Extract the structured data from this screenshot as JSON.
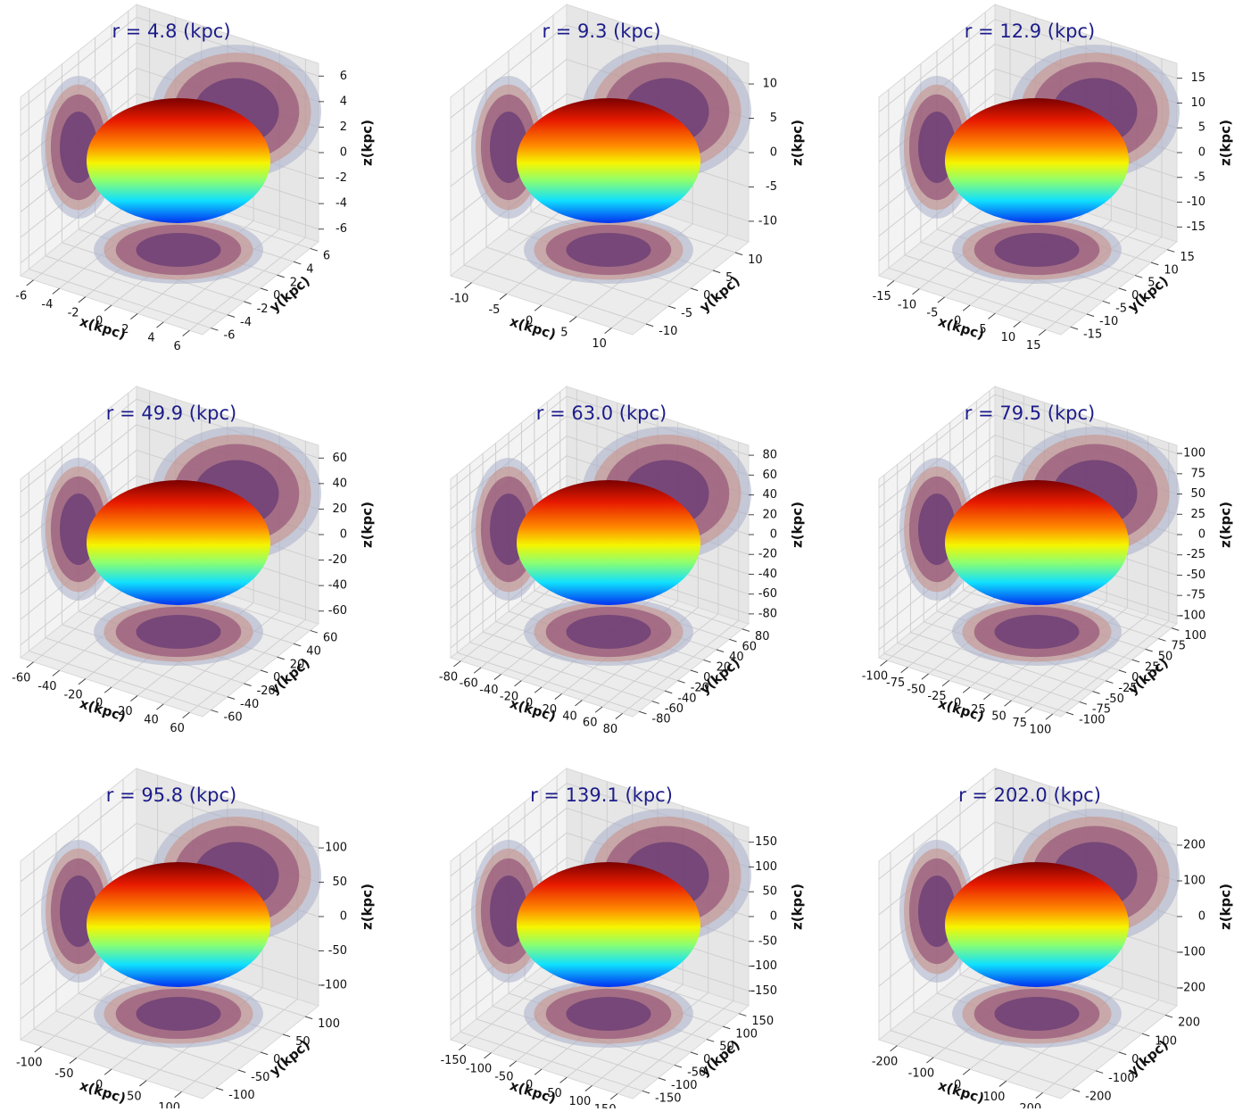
{
  "chart_data": [
    {
      "type": "ellipsoid3d",
      "title": "r = 4.8 (kpc)",
      "xlabel": "x(kpc)",
      "ylabel": "y(kpc)",
      "zlabel": "z(kpc)",
      "xlim": [
        -7,
        7
      ],
      "ylim": [
        -7,
        7
      ],
      "zlim": [
        -7,
        7
      ],
      "xticks": [
        -6,
        -4,
        -2,
        0,
        2,
        4,
        6
      ],
      "yticks": [
        -6,
        -4,
        -2,
        0,
        2,
        4,
        6
      ],
      "zticks": [
        -6,
        -4,
        -2,
        0,
        2,
        4,
        6
      ]
    },
    {
      "type": "ellipsoid3d",
      "title": "r = 9.3 (kpc)",
      "xlabel": "x(kpc)",
      "ylabel": "y(kpc)",
      "zlabel": "z(kpc)",
      "xlim": [
        -13,
        13
      ],
      "ylim": [
        -13,
        13
      ],
      "zlim": [
        -13,
        13
      ],
      "xticks": [
        -10,
        -5,
        0,
        5,
        10
      ],
      "yticks": [
        -10,
        -5,
        0,
        5,
        10
      ],
      "zticks": [
        -10,
        -5,
        0,
        5,
        10
      ]
    },
    {
      "type": "ellipsoid3d",
      "title": "r = 12.9 (kpc)",
      "xlabel": "x(kpc)",
      "ylabel": "y(kpc)",
      "zlabel": "z(kpc)",
      "xlim": [
        -18,
        18
      ],
      "ylim": [
        -18,
        18
      ],
      "zlim": [
        -18,
        18
      ],
      "xticks": [
        -15,
        -10,
        -5,
        0,
        5,
        10,
        15
      ],
      "yticks": [
        -15,
        -10,
        -5,
        0,
        5,
        10,
        15
      ],
      "zticks": [
        -15,
        -10,
        -5,
        0,
        5,
        10,
        15
      ]
    },
    {
      "type": "ellipsoid3d",
      "title": "r = 49.9 (kpc)",
      "xlabel": "x(kpc)",
      "ylabel": "y(kpc)",
      "zlabel": "z(kpc)",
      "xlim": [
        -70,
        70
      ],
      "ylim": [
        -70,
        70
      ],
      "zlim": [
        -70,
        70
      ],
      "xticks": [
        -60,
        -40,
        -20,
        0,
        20,
        40,
        60
      ],
      "yticks": [
        -60,
        -40,
        -20,
        0,
        20,
        40,
        60
      ],
      "zticks": [
        -60,
        -40,
        -20,
        0,
        20,
        40,
        60
      ]
    },
    {
      "type": "ellipsoid3d",
      "title": "r = 63.0 (kpc)",
      "xlabel": "x(kpc)",
      "ylabel": "y(kpc)",
      "zlabel": "z(kpc)",
      "xlim": [
        -90,
        90
      ],
      "ylim": [
        -90,
        90
      ],
      "zlim": [
        -90,
        90
      ],
      "xticks": [
        -80,
        -60,
        -40,
        -20,
        0,
        20,
        40,
        60,
        80
      ],
      "yticks": [
        -80,
        -60,
        -40,
        -20,
        0,
        20,
        40,
        60,
        80
      ],
      "zticks": [
        -80,
        -60,
        -40,
        -20,
        0,
        20,
        40,
        60,
        80
      ]
    },
    {
      "type": "ellipsoid3d",
      "title": "r = 79.5 (kpc)",
      "xlabel": "x(kpc)",
      "ylabel": "y(kpc)",
      "zlabel": "z(kpc)",
      "xlim": [
        -110,
        110
      ],
      "ylim": [
        -110,
        110
      ],
      "zlim": [
        -110,
        110
      ],
      "xticks": [
        -100,
        -75,
        -50,
        -25,
        0,
        25,
        50,
        75,
        100
      ],
      "yticks": [
        -100,
        -75,
        -50,
        -25,
        0,
        25,
        50,
        75,
        100
      ],
      "zticks": [
        -100,
        -75,
        -50,
        -25,
        0,
        25,
        50,
        75,
        100
      ]
    },
    {
      "type": "ellipsoid3d",
      "title": "r = 95.8 (kpc)",
      "xlabel": "x(kpc)",
      "ylabel": "y(kpc)",
      "zlabel": "z(kpc)",
      "xlim": [
        -130,
        130
      ],
      "ylim": [
        -130,
        130
      ],
      "zlim": [
        -130,
        130
      ],
      "xticks": [
        -100,
        -50,
        0,
        50,
        100
      ],
      "yticks": [
        -100,
        -50,
        0,
        50,
        100
      ],
      "zticks": [
        -100,
        -50,
        0,
        50,
        100
      ]
    },
    {
      "type": "ellipsoid3d",
      "title": "r = 139.1 (kpc)",
      "xlabel": "x(kpc)",
      "ylabel": "y(kpc)",
      "zlabel": "z(kpc)",
      "xlim": [
        -180,
        180
      ],
      "ylim": [
        -180,
        180
      ],
      "zlim": [
        -180,
        180
      ],
      "xticks": [
        -150,
        -100,
        -50,
        0,
        50,
        100,
        150
      ],
      "yticks": [
        -150,
        -100,
        -50,
        0,
        50,
        100,
        150
      ],
      "zticks": [
        -150,
        -100,
        -50,
        0,
        50,
        100,
        150
      ]
    },
    {
      "type": "ellipsoid3d",
      "title": "r = 202.0 (kpc)",
      "xlabel": "x(kpc)",
      "ylabel": "y(kpc)",
      "zlabel": "z(kpc)",
      "xlim": [
        -250,
        250
      ],
      "ylim": [
        -250,
        250
      ],
      "zlim": [
        -250,
        250
      ],
      "xticks": [
        -200,
        -100,
        0,
        100,
        200
      ],
      "yticks": [
        -200,
        -100,
        0,
        100,
        200
      ],
      "zticks": [
        -200,
        -100,
        0,
        100,
        200
      ]
    }
  ]
}
